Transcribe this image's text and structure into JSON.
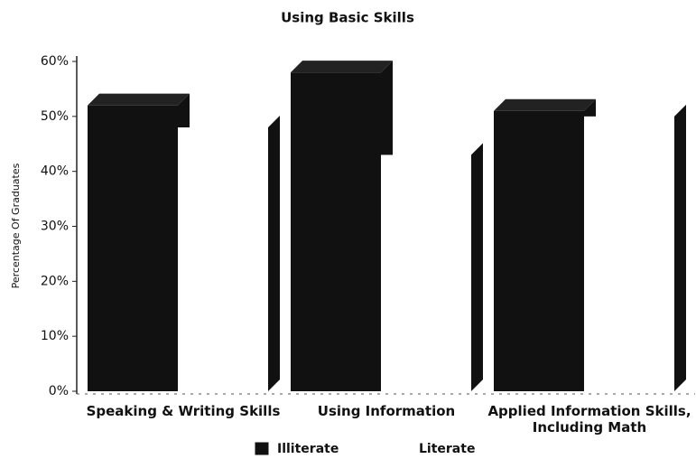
{
  "chart_data": {
    "type": "bar3d",
    "title": "Using Basic Skills",
    "ylabel": "Percentage Of Graduates",
    "categories": [
      "Speaking & Writing Skills",
      "Using Information",
      "Applied Information Skills, Including Math"
    ],
    "series": [
      {
        "name": "Illiterate",
        "color": "#111111",
        "values": [
          52,
          58,
          51
        ]
      },
      {
        "name": "Literate",
        "color": "#ffffff",
        "values": [
          48,
          43,
          50
        ]
      }
    ],
    "ylim": [
      0,
      60
    ],
    "yticks": [
      {
        "value": 0,
        "label": "0%"
      },
      {
        "value": 10,
        "label": "10%"
      },
      {
        "value": 20,
        "label": "20%"
      },
      {
        "value": 30,
        "label": "30%"
      },
      {
        "value": 40,
        "label": "40%"
      },
      {
        "value": 50,
        "label": "50%"
      },
      {
        "value": 60,
        "label": "60%"
      }
    ]
  }
}
